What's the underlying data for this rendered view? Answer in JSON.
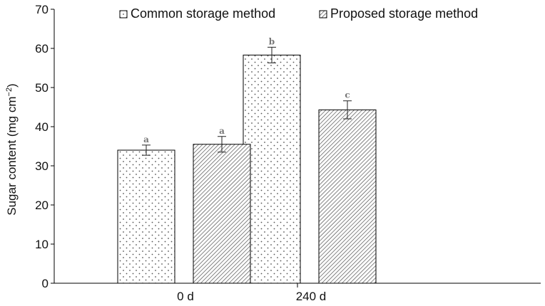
{
  "chart_data": {
    "type": "bar",
    "categories": [
      "0 d",
      "240 d"
    ],
    "series": [
      {
        "name": "Common storage method",
        "values": [
          34,
          58.3
        ],
        "errors": [
          1.3,
          2.0
        ],
        "letters": [
          "a",
          "b"
        ],
        "pattern": "dots"
      },
      {
        "name": "Proposed storage method",
        "values": [
          35.5,
          44.3
        ],
        "errors": [
          2.0,
          2.3
        ],
        "letters": [
          "a",
          "c"
        ],
        "pattern": "diagonal-hatch"
      }
    ],
    "ylabel": "Sugar content (mg cm",
    "ylabel_exponent": "−2",
    "ylabel_close": ")",
    "ylim": [
      0,
      70
    ],
    "yticks": [
      "0",
      "10",
      "20",
      "30",
      "40",
      "50",
      "60",
      "70"
    ],
    "grid": false,
    "legend_position": "top"
  }
}
